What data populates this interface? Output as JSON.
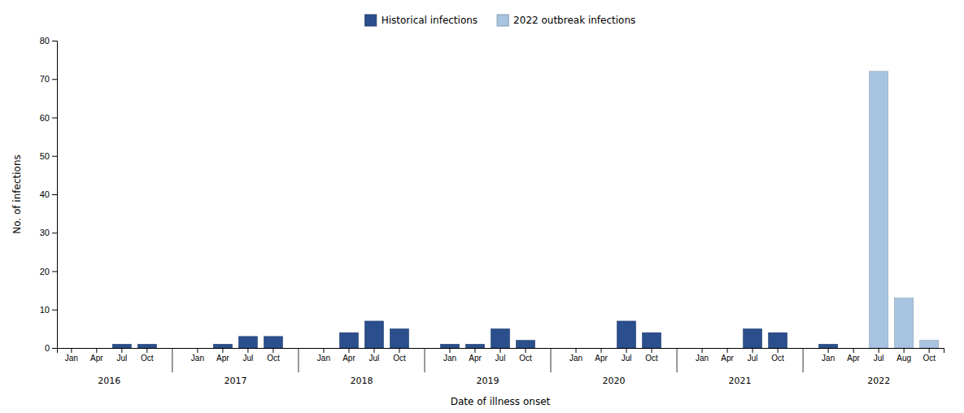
{
  "chart_data": {
    "type": "bar",
    "xlabel": "Date of illness onset",
    "ylabel": "No. of infections",
    "categories": [
      "Jan",
      "Apr",
      "Jul",
      "Oct",
      "Jan",
      "Apr",
      "Jul",
      "Oct",
      "Jan",
      "Apr",
      "Jul",
      "Oct",
      "Jan",
      "Apr",
      "Jul",
      "Oct",
      "Jan",
      "Apr",
      "Jul",
      "Oct",
      "Jan",
      "Apr",
      "Jul",
      "Oct",
      "Jan",
      "Apr",
      "Jul",
      "Aug",
      "Oct"
    ],
    "category_years": [
      "2016",
      "2016",
      "2016",
      "2016",
      "2017",
      "2017",
      "2017",
      "2017",
      "2018",
      "2018",
      "2018",
      "2018",
      "2019",
      "2019",
      "2019",
      "2019",
      "2020",
      "2020",
      "2020",
      "2020",
      "2021",
      "2021",
      "2021",
      "2021",
      "2022",
      "2022",
      "2022",
      "2022",
      "2022"
    ],
    "series": [
      {
        "name": "Historical infections",
        "color": "#2B4F8C",
        "values": [
          0,
          0,
          1,
          1,
          0,
          1,
          3,
          3,
          0,
          4,
          7,
          5,
          1,
          1,
          5,
          2,
          0,
          0,
          7,
          4,
          0,
          0,
          5,
          4,
          1,
          0,
          0,
          0,
          0
        ]
      },
      {
        "name": "2022 outbreak infections",
        "color": "#A8C4E0",
        "values": [
          0,
          0,
          0,
          0,
          0,
          0,
          0,
          0,
          0,
          0,
          0,
          0,
          0,
          0,
          0,
          0,
          0,
          0,
          0,
          0,
          0,
          0,
          0,
          0,
          0,
          0,
          72,
          13,
          2
        ]
      }
    ],
    "ylim": [
      0,
      80
    ],
    "yticks": [
      0,
      10,
      20,
      30,
      40,
      50,
      60,
      70,
      80
    ],
    "grid": false,
    "legend": "top",
    "stacked": true
  }
}
